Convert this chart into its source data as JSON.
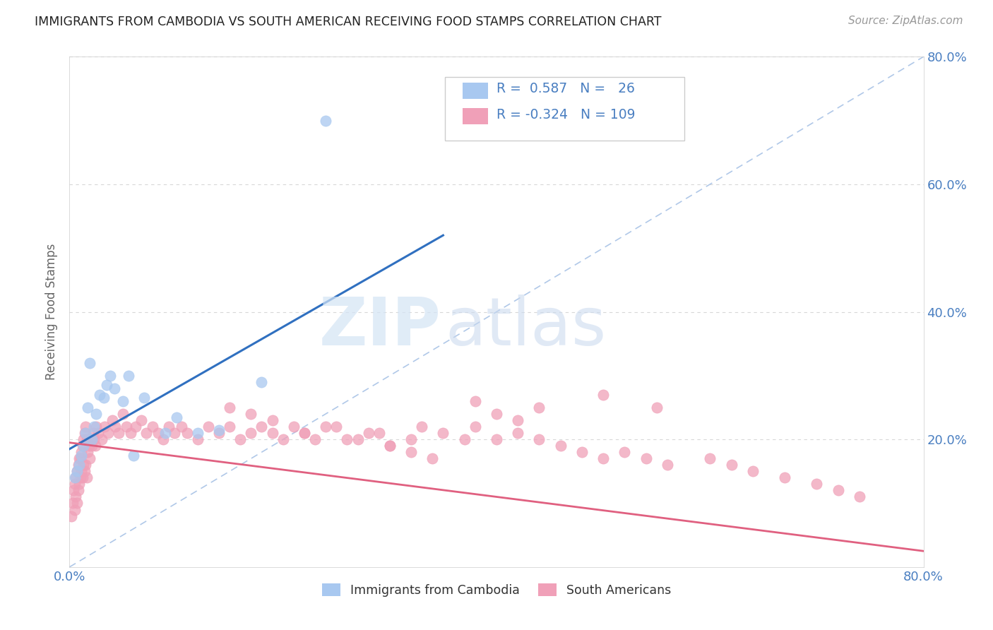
{
  "title": "IMMIGRANTS FROM CAMBODIA VS SOUTH AMERICAN RECEIVING FOOD STAMPS CORRELATION CHART",
  "source": "Source: ZipAtlas.com",
  "ylabel": "Receiving Food Stamps",
  "watermark_zip": "ZIP",
  "watermark_atlas": "atlas",
  "blue_color": "#a8c8f0",
  "pink_color": "#f0a0b8",
  "blue_line_color": "#3070c0",
  "pink_line_color": "#e06080",
  "ref_line_color": "#b0c8e8",
  "background_color": "#ffffff",
  "grid_color": "#d8d8d8",
  "tick_color": "#4a7fc1",
  "xlim": [
    0.0,
    0.8
  ],
  "ylim": [
    0.0,
    0.8
  ],
  "cam_x": [
    0.005,
    0.007,
    0.009,
    0.011,
    0.013,
    0.015,
    0.017,
    0.019,
    0.021,
    0.023,
    0.025,
    0.028,
    0.032,
    0.035,
    0.038,
    0.042,
    0.05,
    0.055,
    0.06,
    0.07,
    0.09,
    0.1,
    0.12,
    0.14,
    0.18,
    0.24
  ],
  "cam_y": [
    0.14,
    0.15,
    0.16,
    0.175,
    0.19,
    0.21,
    0.25,
    0.32,
    0.2,
    0.22,
    0.24,
    0.27,
    0.265,
    0.285,
    0.3,
    0.28,
    0.26,
    0.3,
    0.175,
    0.265,
    0.21,
    0.235,
    0.21,
    0.215,
    0.29,
    0.7
  ],
  "sam_x": [
    0.002,
    0.003,
    0.004,
    0.005,
    0.005,
    0.006,
    0.006,
    0.007,
    0.007,
    0.008,
    0.008,
    0.009,
    0.009,
    0.01,
    0.01,
    0.011,
    0.011,
    0.012,
    0.012,
    0.013,
    0.013,
    0.014,
    0.014,
    0.015,
    0.015,
    0.016,
    0.016,
    0.017,
    0.018,
    0.019,
    0.02,
    0.021,
    0.022,
    0.023,
    0.024,
    0.025,
    0.027,
    0.03,
    0.033,
    0.036,
    0.04,
    0.043,
    0.046,
    0.05,
    0.053,
    0.057,
    0.062,
    0.067,
    0.072,
    0.078,
    0.083,
    0.088,
    0.093,
    0.098,
    0.105,
    0.11,
    0.12,
    0.13,
    0.14,
    0.15,
    0.16,
    0.17,
    0.18,
    0.19,
    0.2,
    0.21,
    0.22,
    0.23,
    0.25,
    0.27,
    0.29,
    0.3,
    0.32,
    0.33,
    0.35,
    0.37,
    0.38,
    0.4,
    0.42,
    0.44,
    0.46,
    0.48,
    0.5,
    0.52,
    0.54,
    0.56,
    0.6,
    0.62,
    0.64,
    0.67,
    0.7,
    0.72,
    0.74,
    0.5,
    0.55,
    0.38,
    0.4,
    0.42,
    0.44,
    0.15,
    0.17,
    0.19,
    0.22,
    0.24,
    0.26,
    0.28,
    0.3,
    0.32,
    0.34
  ],
  "sam_y": [
    0.08,
    0.1,
    0.12,
    0.13,
    0.09,
    0.14,
    0.11,
    0.15,
    0.1,
    0.16,
    0.12,
    0.17,
    0.13,
    0.17,
    0.14,
    0.18,
    0.15,
    0.19,
    0.14,
    0.2,
    0.16,
    0.21,
    0.15,
    0.22,
    0.16,
    0.2,
    0.14,
    0.18,
    0.19,
    0.17,
    0.2,
    0.19,
    0.21,
    0.2,
    0.19,
    0.22,
    0.21,
    0.2,
    0.22,
    0.21,
    0.23,
    0.22,
    0.21,
    0.24,
    0.22,
    0.21,
    0.22,
    0.23,
    0.21,
    0.22,
    0.21,
    0.2,
    0.22,
    0.21,
    0.22,
    0.21,
    0.2,
    0.22,
    0.21,
    0.22,
    0.2,
    0.21,
    0.22,
    0.21,
    0.2,
    0.22,
    0.21,
    0.2,
    0.22,
    0.2,
    0.21,
    0.19,
    0.2,
    0.22,
    0.21,
    0.2,
    0.22,
    0.2,
    0.21,
    0.2,
    0.19,
    0.18,
    0.17,
    0.18,
    0.17,
    0.16,
    0.17,
    0.16,
    0.15,
    0.14,
    0.13,
    0.12,
    0.11,
    0.27,
    0.25,
    0.26,
    0.24,
    0.23,
    0.25,
    0.25,
    0.24,
    0.23,
    0.21,
    0.22,
    0.2,
    0.21,
    0.19,
    0.18,
    0.17
  ],
  "cam_line_x0": 0.0,
  "cam_line_y0": 0.185,
  "cam_line_x1": 0.35,
  "cam_line_y1": 0.52,
  "sam_line_x0": 0.0,
  "sam_line_y0": 0.195,
  "sam_line_x1": 0.8,
  "sam_line_y1": 0.025
}
